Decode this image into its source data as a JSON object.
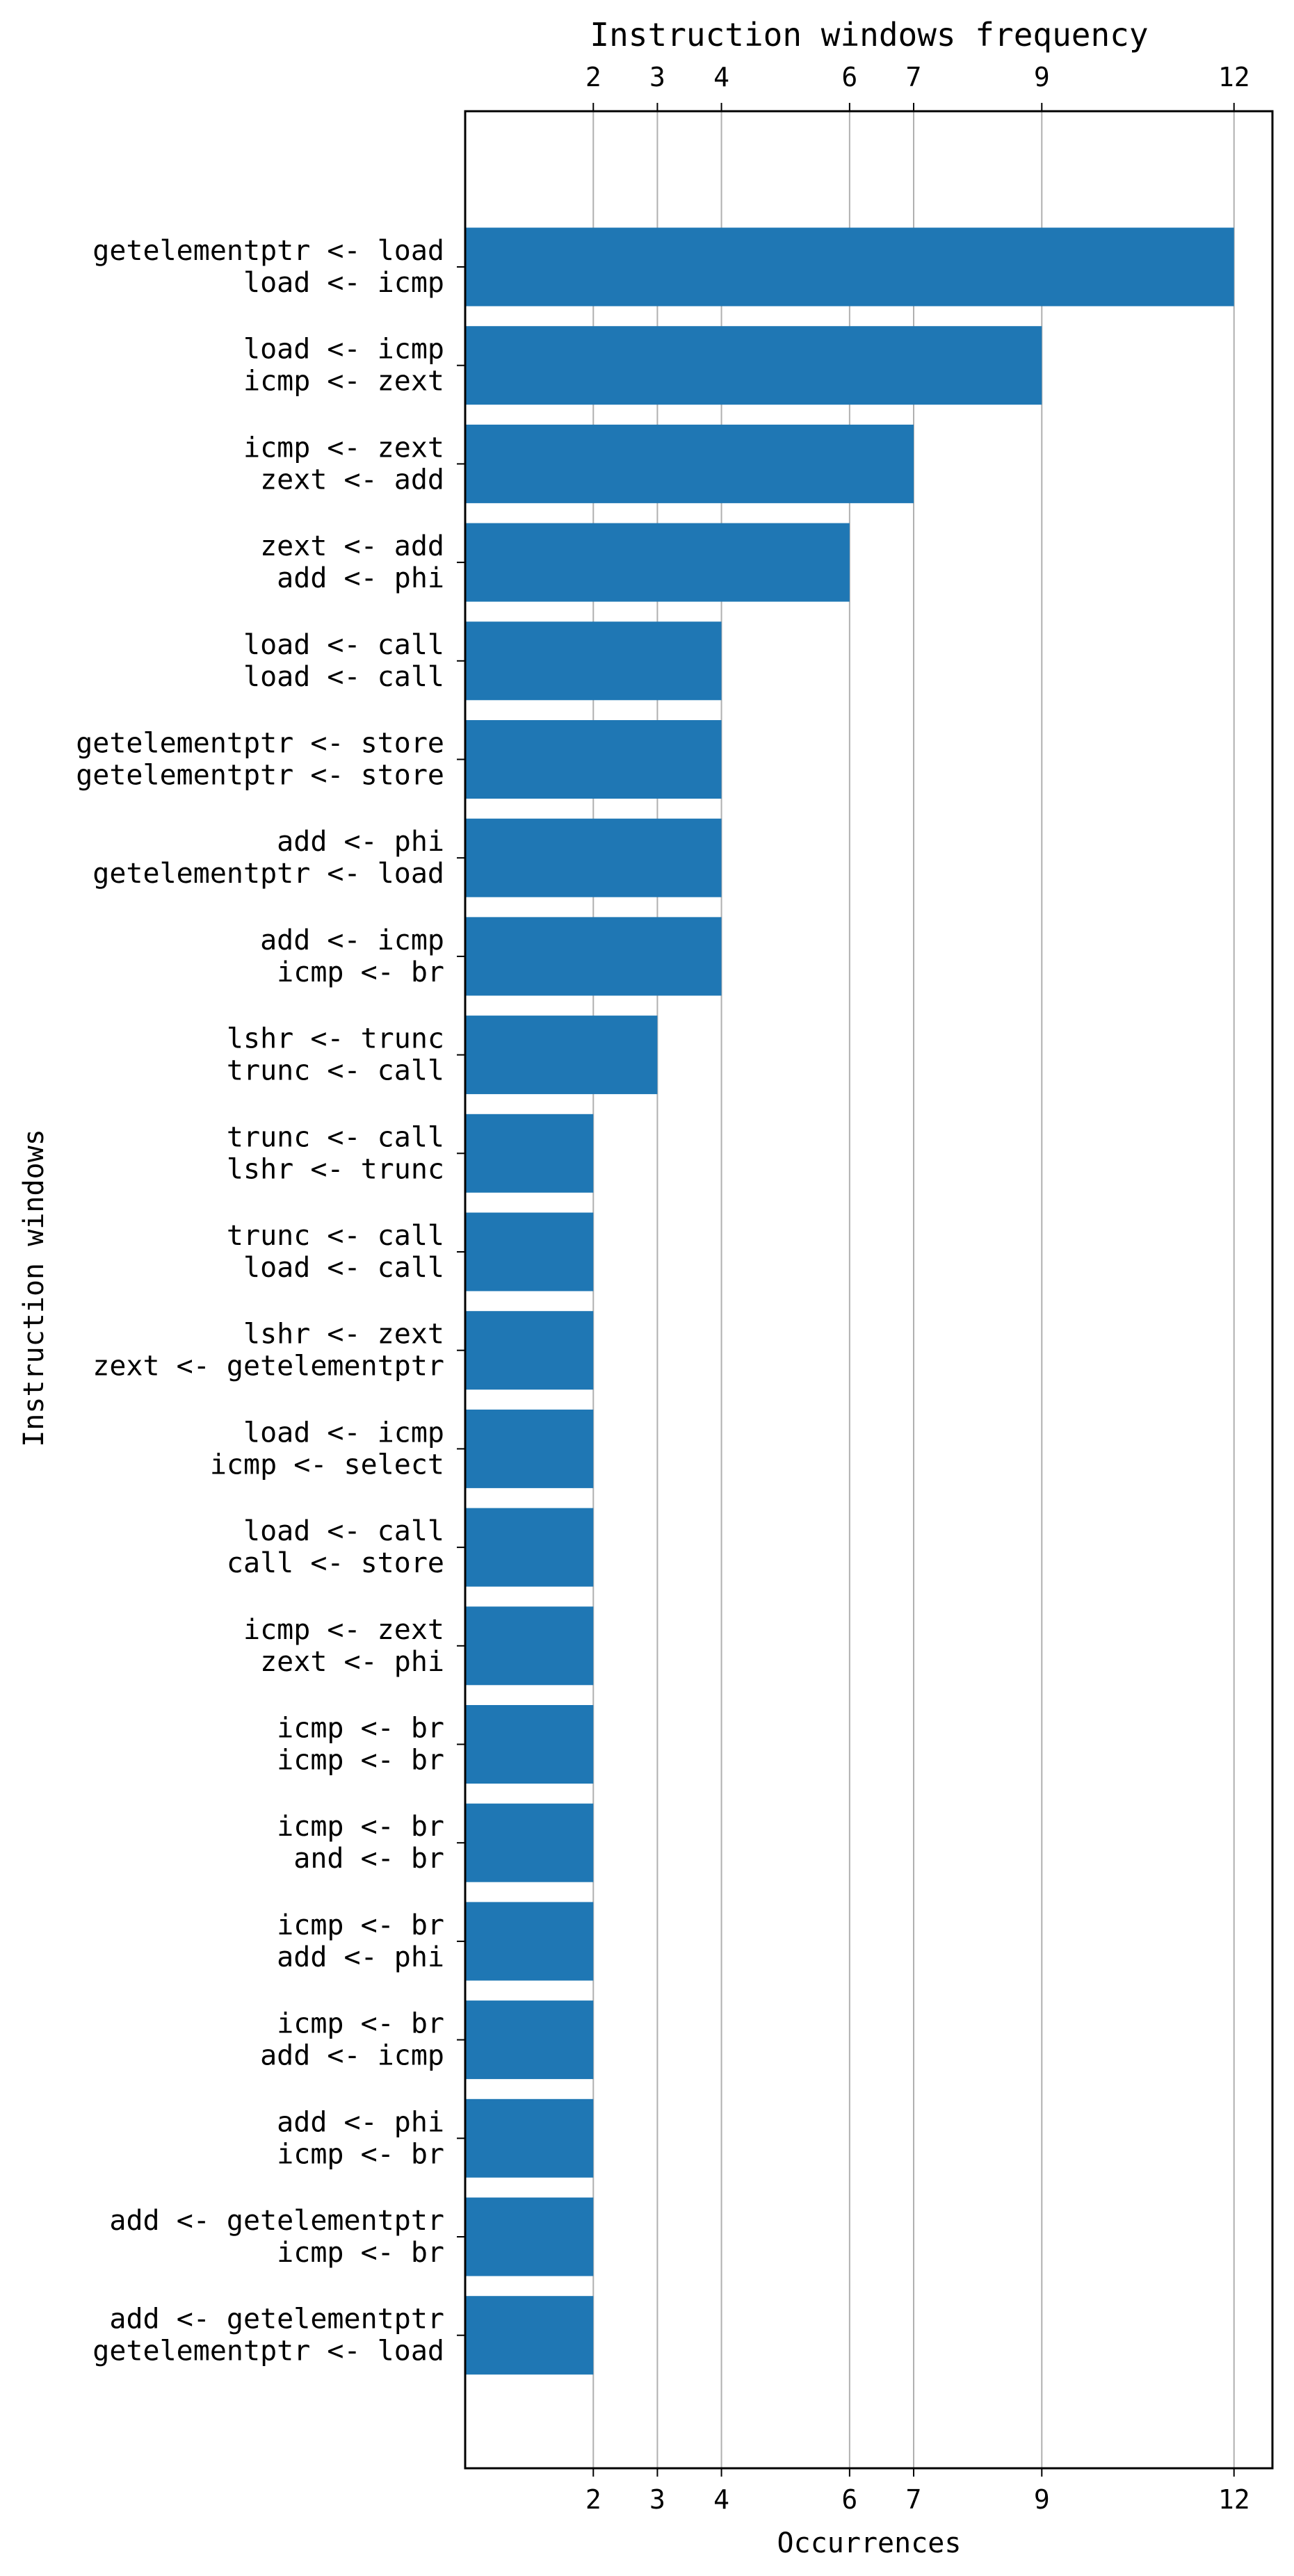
{
  "chart_data": {
    "type": "bar",
    "orientation": "horizontal",
    "title": "Instruction windows frequency",
    "xlabel": "Occurrences",
    "ylabel": "Instruction windows",
    "x_ticks": [
      2,
      3,
      4,
      6,
      7,
      9,
      12
    ],
    "x_ticks_top": true,
    "grid": "x",
    "xlim": [
      0,
      12.6
    ],
    "bar_color": "#1f77b4",
    "categories": [
      [
        "getelementptr <- load",
        "load <- icmp"
      ],
      [
        "load <- icmp",
        "icmp <- zext"
      ],
      [
        "icmp <- zext",
        "zext <- add"
      ],
      [
        "zext <- add",
        "add <- phi"
      ],
      [
        "load <- call",
        "load <- call"
      ],
      [
        "getelementptr <- store",
        "getelementptr <- store"
      ],
      [
        "add <- phi",
        "getelementptr <- load"
      ],
      [
        "add <- icmp",
        "icmp <- br"
      ],
      [
        "lshr <- trunc",
        "trunc <- call"
      ],
      [
        "trunc <- call",
        "lshr <- trunc"
      ],
      [
        "trunc <- call",
        "load <- call"
      ],
      [
        "lshr <- zext",
        "zext <- getelementptr"
      ],
      [
        "load <- icmp",
        "icmp <- select"
      ],
      [
        "load <- call",
        "call <- store"
      ],
      [
        "icmp <- zext",
        "zext <- phi"
      ],
      [
        "icmp <- br",
        "icmp <- br"
      ],
      [
        "icmp <- br",
        "and <- br"
      ],
      [
        "icmp <- br",
        "add <- phi"
      ],
      [
        "icmp <- br",
        "add <- icmp"
      ],
      [
        "add <- phi",
        "icmp <- br"
      ],
      [
        "add <- getelementptr",
        "icmp <- br"
      ],
      [
        "add <- getelementptr",
        "getelementptr <- load"
      ]
    ],
    "values": [
      12,
      9,
      7,
      6,
      4,
      4,
      4,
      4,
      3,
      2,
      2,
      2,
      2,
      2,
      2,
      2,
      2,
      2,
      2,
      2,
      2,
      2
    ]
  }
}
